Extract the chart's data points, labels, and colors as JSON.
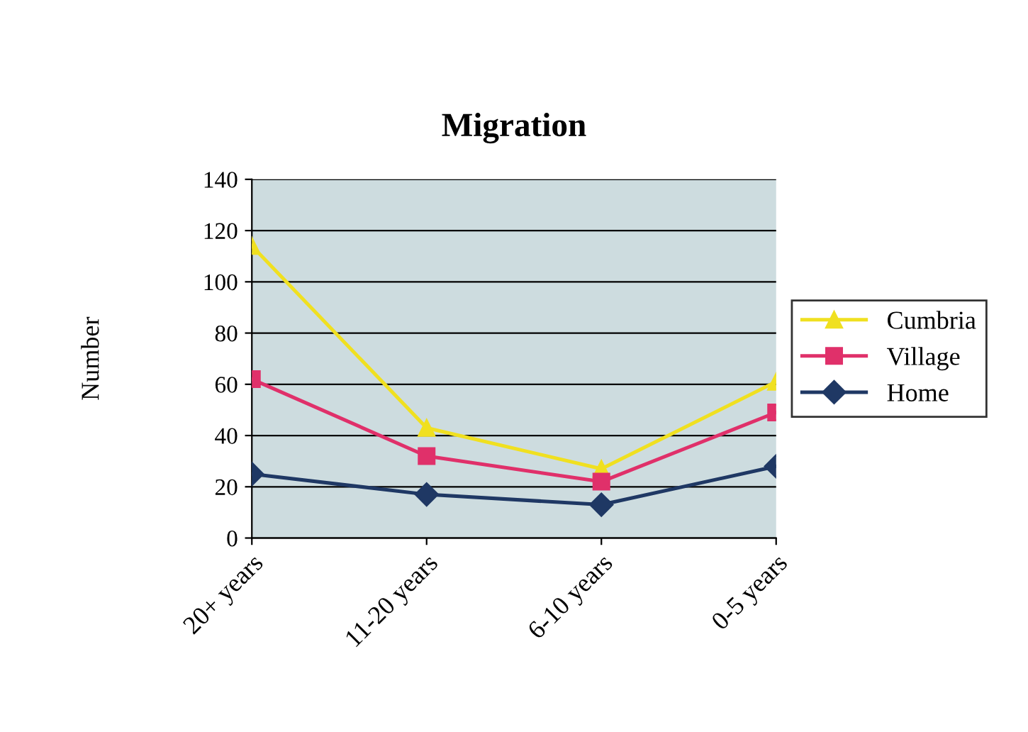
{
  "chart_data": {
    "type": "line",
    "title": "Migration",
    "ylabel": "Number",
    "categories": [
      "20+ years",
      "11-20 years",
      "6-10 years",
      "0-5 years"
    ],
    "series": [
      {
        "name": "Cumbria",
        "color": "#f0e020",
        "marker": "triangle",
        "values": [
          114,
          43,
          27,
          61
        ]
      },
      {
        "name": "Village",
        "color": "#e0306a",
        "marker": "square",
        "values": [
          62,
          32,
          22,
          49
        ]
      },
      {
        "name": "Home",
        "color": "#1f3864",
        "marker": "diamond",
        "values": [
          25,
          17,
          13,
          28
        ]
      }
    ],
    "ylim": [
      0,
      140
    ],
    "yticks": [
      0,
      20,
      40,
      60,
      80,
      100,
      120,
      140
    ],
    "grid": "y",
    "legend": "right",
    "line_style": "solid"
  }
}
